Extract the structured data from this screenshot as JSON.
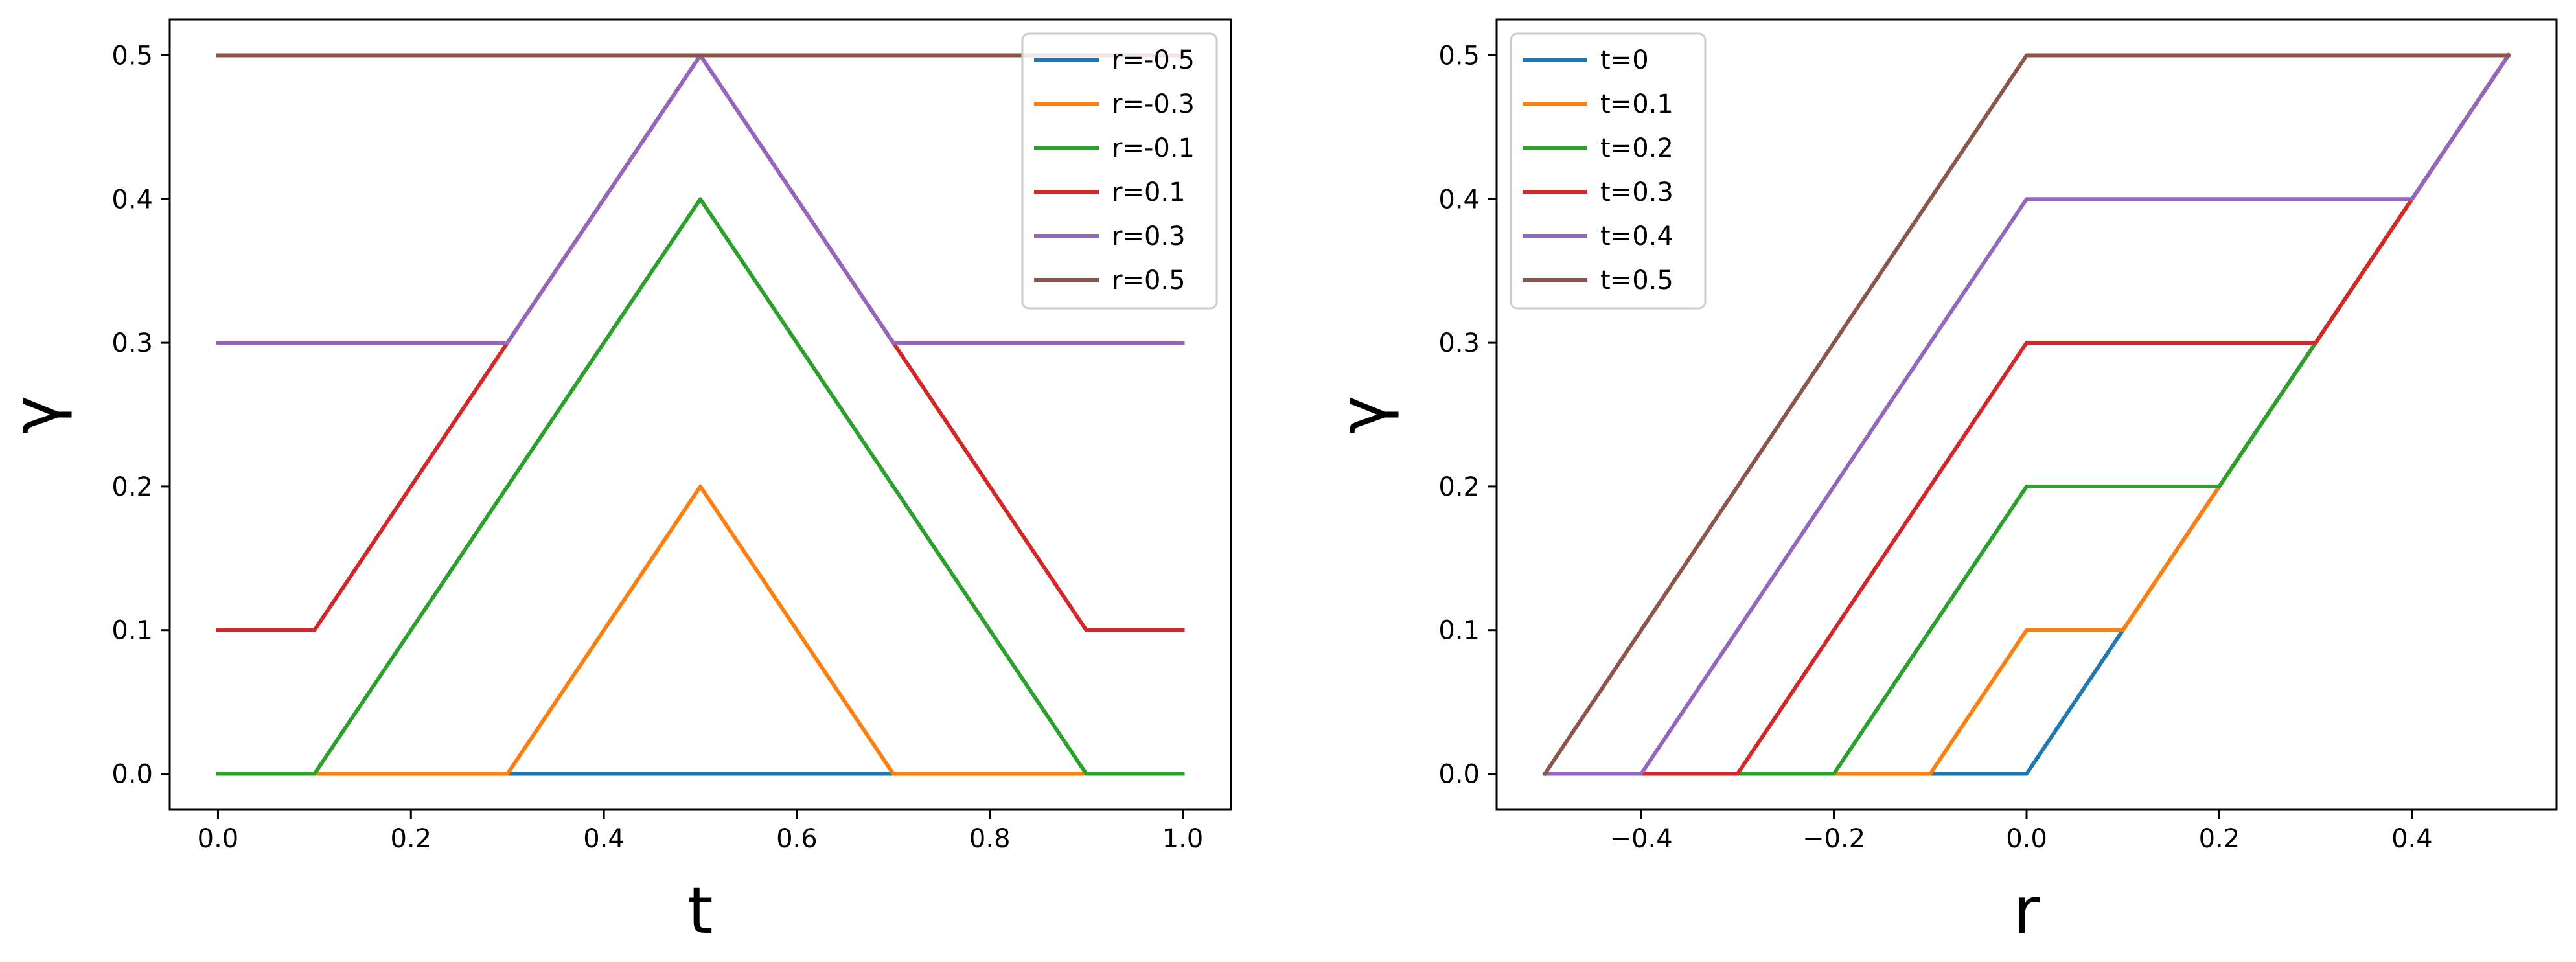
{
  "chart_data": [
    {
      "type": "line",
      "xlabel": "t",
      "ylabel": "γ",
      "xlim": [
        -0.05,
        1.05
      ],
      "ylim": [
        -0.025,
        0.525
      ],
      "xticks": [
        0.0,
        0.2,
        0.4,
        0.6,
        0.8,
        1.0
      ],
      "xtick_labels": [
        "0.0",
        "0.2",
        "0.4",
        "0.6",
        "0.8",
        "1.0"
      ],
      "yticks": [
        0.0,
        0.1,
        0.2,
        0.3,
        0.4,
        0.5
      ],
      "ytick_labels": [
        "0.0",
        "0.1",
        "0.2",
        "0.3",
        "0.4",
        "0.5"
      ],
      "legend_position": "top-right",
      "grid": false,
      "series": [
        {
          "name": "r=-0.5",
          "color": "#1f77b4",
          "x": [
            0,
            1
          ],
          "y": [
            0,
            0
          ]
        },
        {
          "name": "r=-0.3",
          "color": "#ff7f0e",
          "x": [
            0,
            0.3,
            0.5,
            0.7,
            1.0
          ],
          "y": [
            0,
            0,
            0.2,
            0,
            0
          ]
        },
        {
          "name": "r=-0.1",
          "color": "#2ca02c",
          "x": [
            0,
            0.1,
            0.5,
            0.9,
            1.0
          ],
          "y": [
            0,
            0,
            0.4,
            0,
            0
          ]
        },
        {
          "name": "r=0.1",
          "color": "#d62728",
          "x": [
            0,
            0.1,
            0.5,
            0.9,
            1.0
          ],
          "y": [
            0.1,
            0.1,
            0.5,
            0.1,
            0.1
          ]
        },
        {
          "name": "r=0.3",
          "color": "#9467bd",
          "x": [
            0,
            0.3,
            0.5,
            0.7,
            1.0
          ],
          "y": [
            0.3,
            0.3,
            0.5,
            0.3,
            0.3
          ]
        },
        {
          "name": "r=0.5",
          "color": "#8c564b",
          "x": [
            0,
            1
          ],
          "y": [
            0.5,
            0.5
          ]
        }
      ]
    },
    {
      "type": "line",
      "xlabel": "r",
      "ylabel": "γ",
      "xlim": [
        -0.55,
        0.55
      ],
      "ylim": [
        -0.025,
        0.525
      ],
      "xticks": [
        -0.4,
        -0.2,
        0.0,
        0.2,
        0.4
      ],
      "xtick_labels": [
        "−0.4",
        "−0.2",
        "0.0",
        "0.2",
        "0.4"
      ],
      "yticks": [
        0.0,
        0.1,
        0.2,
        0.3,
        0.4,
        0.5
      ],
      "ytick_labels": [
        "0.0",
        "0.1",
        "0.2",
        "0.3",
        "0.4",
        "0.5"
      ],
      "legend_position": "top-left",
      "grid": false,
      "series": [
        {
          "name": "t=0",
          "color": "#1f77b4",
          "x": [
            -0.5,
            0.0,
            0.5
          ],
          "y": [
            0,
            0,
            0.5
          ]
        },
        {
          "name": "t=0.1",
          "color": "#ff7f0e",
          "x": [
            -0.5,
            -0.1,
            0.0,
            0.1,
            0.5
          ],
          "y": [
            0,
            0,
            0.1,
            0.1,
            0.5
          ]
        },
        {
          "name": "t=0.2",
          "color": "#2ca02c",
          "x": [
            -0.5,
            -0.2,
            0.0,
            0.2,
            0.5
          ],
          "y": [
            0,
            0,
            0.2,
            0.2,
            0.5
          ]
        },
        {
          "name": "t=0.3",
          "color": "#d62728",
          "x": [
            -0.5,
            -0.3,
            0.0,
            0.3,
            0.5
          ],
          "y": [
            0,
            0,
            0.3,
            0.3,
            0.5
          ]
        },
        {
          "name": "t=0.4",
          "color": "#9467bd",
          "x": [
            -0.5,
            -0.4,
            0.0,
            0.4,
            0.5
          ],
          "y": [
            0,
            0,
            0.4,
            0.4,
            0.5
          ]
        },
        {
          "name": "t=0.5",
          "color": "#8c564b",
          "x": [
            -0.5,
            0.0,
            0.5
          ],
          "y": [
            0,
            0.5,
            0.5
          ]
        }
      ]
    }
  ]
}
